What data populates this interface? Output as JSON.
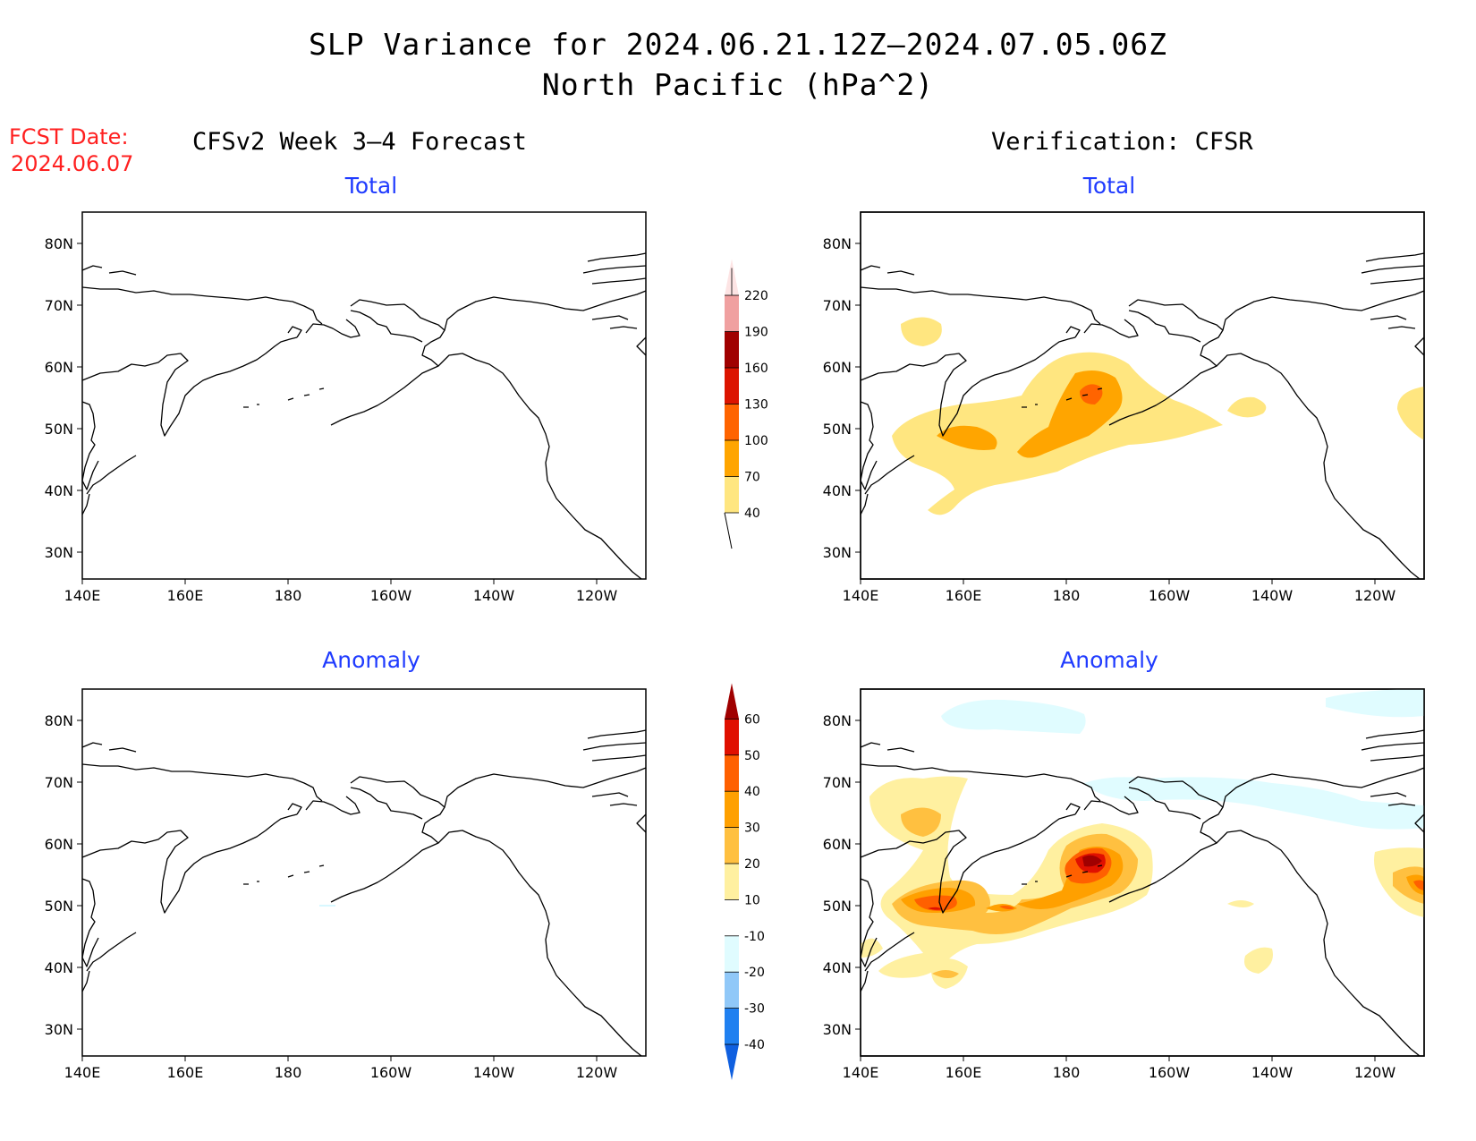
{
  "title": {
    "line1": "SLP Variance for 2024.06.21.12Z–2024.07.05.06Z",
    "line2": "North Pacific (hPa^2)"
  },
  "fcst_date": {
    "label": "FCST Date:",
    "value": "2024.06.07"
  },
  "columns": {
    "left": "CFSv2 Week 3–4 Forecast",
    "right": "Verification: CFSR"
  },
  "panels": {
    "top_left": "Total",
    "top_right": "Total",
    "bottom_left": "Anomaly",
    "bottom_right": "Anomaly"
  },
  "axes": {
    "lat_ticks": [
      "80N",
      "70N",
      "60N",
      "50N",
      "40N",
      "30N"
    ],
    "lon_ticks": [
      "140E",
      "160E",
      "180",
      "160W",
      "140W",
      "120W"
    ]
  },
  "colorbars": {
    "total": {
      "levels": [
        "40",
        "70",
        "100",
        "130",
        "160",
        "190",
        "220"
      ],
      "colors": [
        "#ffe680",
        "#ffa500",
        "#ff6400",
        "#dc1400",
        "#a00000",
        "#f0a0a0",
        "#fde4e4"
      ]
    },
    "anomaly": {
      "levels": [
        "-40",
        "-30",
        "-20",
        "-10",
        "10",
        "20",
        "30",
        "40",
        "50",
        "60"
      ],
      "colors": [
        "#1060e0",
        "#2080f0",
        "#90c8f8",
        "#e0fcff",
        "#ffffff",
        "#fff0a0",
        "#ffc040",
        "#ffa000",
        "#ff6000",
        "#e01000",
        "#a00000"
      ]
    }
  }
}
